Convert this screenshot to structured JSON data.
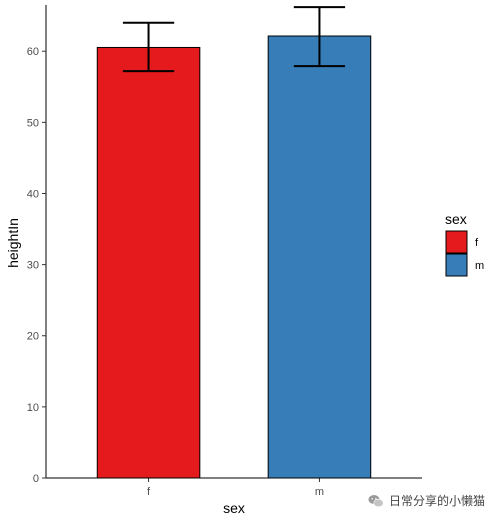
{
  "chart_data": {
    "type": "bar",
    "xlabel": "sex",
    "ylabel": "heightIn",
    "categories": [
      "f",
      "m"
    ],
    "values": [
      60.53,
      62.14
    ],
    "error_low": [
      57.2,
      57.9
    ],
    "error_high": [
      64.0,
      66.2
    ],
    "ylim": [
      0,
      66.5
    ],
    "yticks": [
      0,
      10,
      20,
      30,
      40,
      50,
      60
    ],
    "grid": false,
    "colors": [
      "#e41a1c",
      "#377eb8"
    ],
    "legend": {
      "title": "sex",
      "position": "right",
      "entries": [
        "f",
        "m"
      ]
    }
  },
  "watermark": {
    "text": "日常分享的小懒猫",
    "icon": "wechat-logo-icon"
  }
}
